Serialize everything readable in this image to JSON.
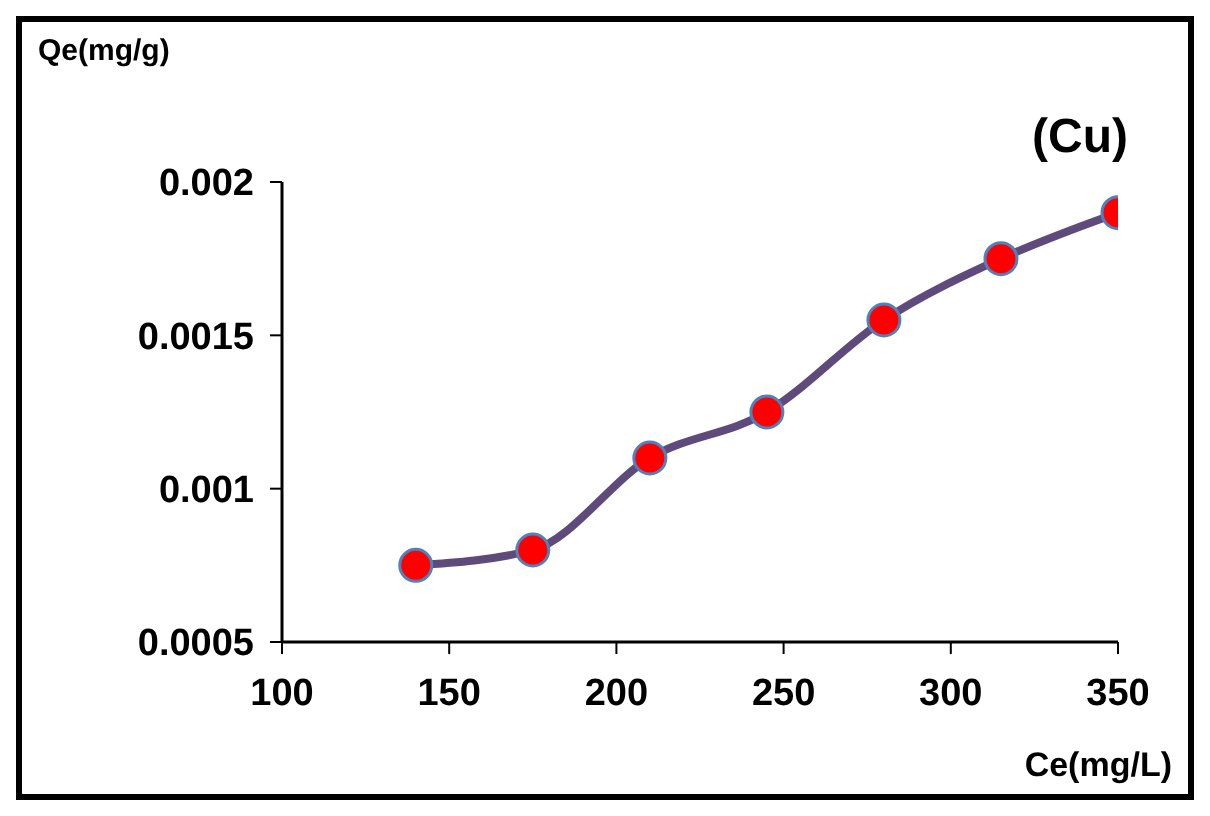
{
  "chart_data": {
    "type": "line",
    "xlabel": "Ce(mg/L)",
    "ylabel": "Qe(mg/g)",
    "annotations": [
      "(Cu)"
    ],
    "x": [
      140,
      175,
      210,
      245,
      280,
      315,
      350
    ],
    "series": [
      {
        "color": "#5e4b7c",
        "values": [
          0.00075,
          0.0008,
          0.0011,
          0.00125,
          0.00155,
          0.00175,
          0.0019
        ]
      }
    ],
    "xlim": [
      100,
      350
    ],
    "xticks": [
      100,
      150,
      200,
      250,
      300,
      350
    ],
    "ylim": [
      0.0005,
      0.002
    ],
    "yticks": [
      0.0005,
      0.001,
      0.0015,
      0.002
    ],
    "grid": false,
    "legend": false,
    "marker": "circle",
    "line_style": "solid"
  }
}
